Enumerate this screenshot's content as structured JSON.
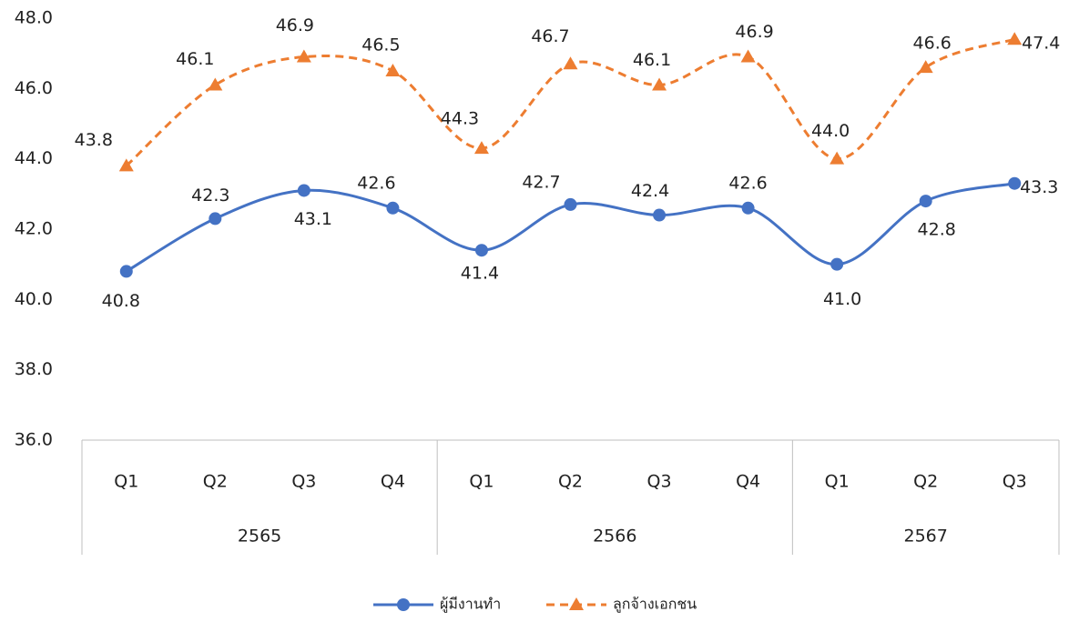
{
  "chart_data": {
    "type": "line",
    "groups": [
      {
        "name": "2565",
        "categories": [
          "Q1",
          "Q2",
          "Q3",
          "Q4"
        ]
      },
      {
        "name": "2566",
        "categories": [
          "Q1",
          "Q2",
          "Q3",
          "Q4"
        ]
      },
      {
        "name": "2567",
        "categories": [
          "Q1",
          "Q2",
          "Q3"
        ]
      }
    ],
    "series": [
      {
        "name": "ผู้มีงานทำ",
        "color": "#4472c4",
        "dash": "solid",
        "marker": "circle",
        "values": [
          40.8,
          42.3,
          43.1,
          42.6,
          41.4,
          42.7,
          42.4,
          42.6,
          41.0,
          42.8,
          43.3
        ],
        "value_labels": [
          "40.8",
          "42.3",
          "43.1",
          "42.6",
          "41.4",
          "42.7",
          "42.4",
          "42.6",
          "41.0",
          "42.8",
          "43.3"
        ]
      },
      {
        "name": "ลูกจ้างเอกชน",
        "color": "#ed7d31",
        "dash": "dashed",
        "marker": "triangle",
        "values": [
          43.8,
          46.1,
          46.9,
          46.5,
          44.3,
          46.7,
          46.1,
          46.9,
          44.0,
          46.6,
          47.4
        ],
        "value_labels": [
          "43.8",
          "46.1",
          "46.9",
          "46.5",
          "44.3",
          "46.7",
          "46.1",
          "46.9",
          "44.0",
          "46.6",
          "47.4"
        ]
      }
    ],
    "ylim": [
      36,
      48
    ],
    "yticks": [
      {
        "value": 36,
        "label": "36.0"
      },
      {
        "value": 38,
        "label": "38.0"
      },
      {
        "value": 40,
        "label": "40.0"
      },
      {
        "value": 42,
        "label": "42.0"
      },
      {
        "value": 44,
        "label": "44.0"
      },
      {
        "value": 46,
        "label": "46.0"
      },
      {
        "value": 48,
        "label": "48.0"
      }
    ],
    "legend": "bottom"
  }
}
